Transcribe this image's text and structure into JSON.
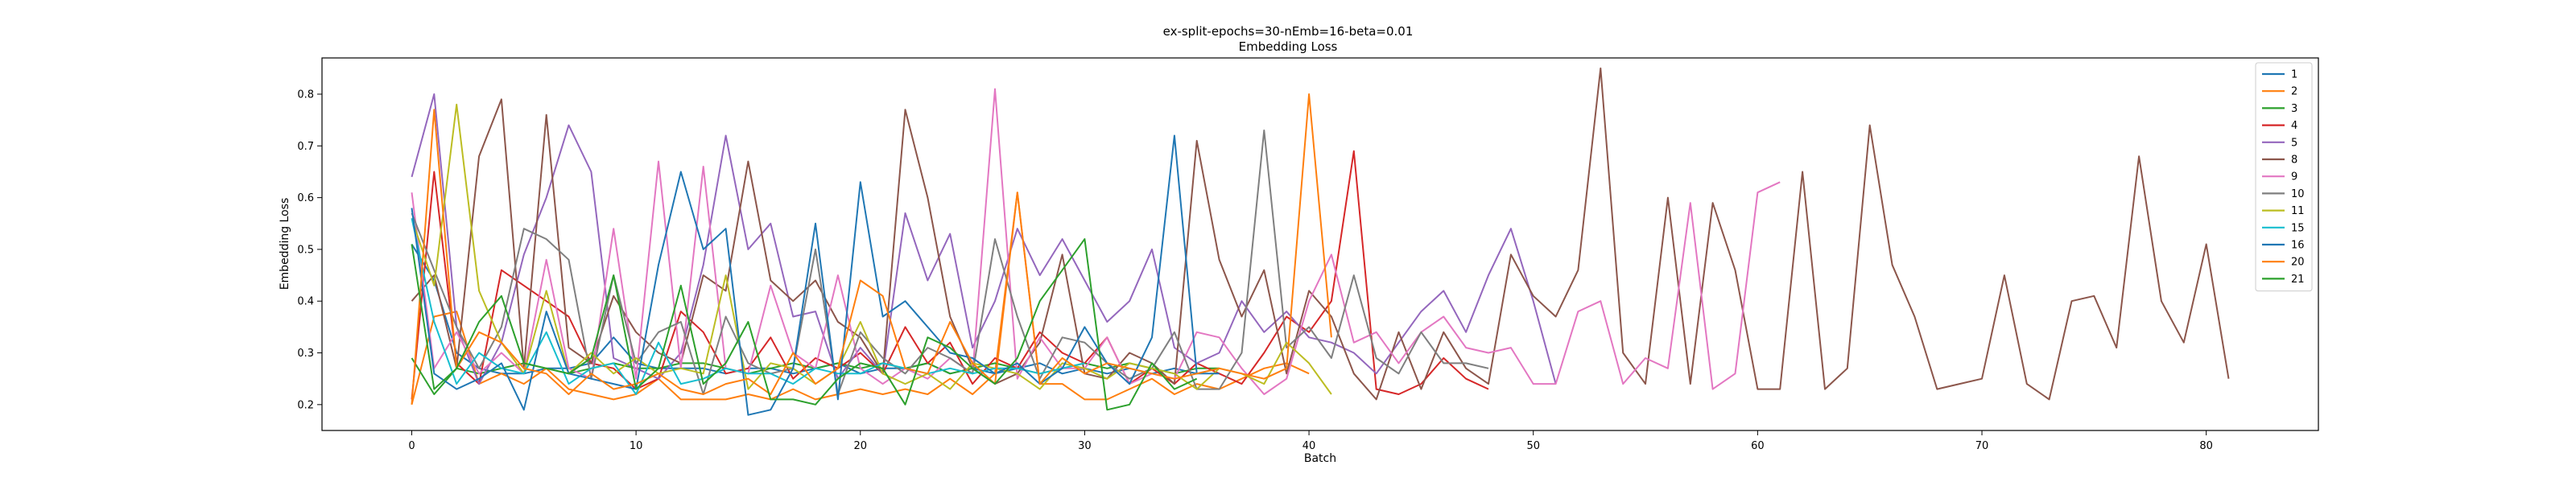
{
  "chart_data": {
    "type": "line",
    "title": "ex-split-epochs=30-nEmb=16-beta=0.01",
    "subtitle": "Embedding Loss",
    "xlabel": "Batch",
    "ylabel": "Embedding Loss",
    "xlim": [
      -4,
      85
    ],
    "ylim": [
      0.15,
      0.87
    ],
    "xticks": [
      0,
      10,
      20,
      30,
      40,
      50,
      60,
      70,
      80
    ],
    "yticks": [
      0.2,
      0.3,
      0.4,
      0.5,
      0.6,
      0.7,
      0.8
    ],
    "grid": false,
    "legend_position": "top-right",
    "series": [
      {
        "name": "1",
        "color": "#1f77b4",
        "values": [
          0.51,
          0.44,
          0.3,
          0.27,
          0.26,
          0.26,
          0.27,
          0.27,
          0.28,
          0.33,
          0.28,
          0.27,
          0.27,
          0.27,
          0.26,
          0.27,
          0.27,
          0.26,
          0.27,
          0.28,
          0.26,
          0.27,
          0.27,
          0.28,
          0.26,
          0.27,
          0.26,
          0.27,
          0.28,
          0.26,
          0.27,
          0.26,
          0.27,
          0.26,
          0.27,
          0.26,
          0.27
        ]
      },
      {
        "name": "2",
        "color": "#ff7f0e",
        "values": [
          0.2,
          0.37,
          0.38,
          0.24,
          0.26,
          0.24,
          0.27,
          0.23,
          0.22,
          0.21,
          0.22,
          0.25,
          0.21,
          0.21,
          0.21,
          0.22,
          0.21,
          0.23,
          0.21,
          0.22,
          0.23,
          0.22,
          0.23,
          0.22,
          0.25,
          0.22,
          0.26,
          0.61,
          0.24,
          0.24,
          0.21,
          0.21,
          0.23,
          0.25,
          0.22,
          0.24,
          0.23,
          0.25,
          0.27,
          0.28,
          0.26
        ]
      },
      {
        "name": "3",
        "color": "#2ca02c",
        "values": [
          0.29,
          0.22,
          0.27,
          0.26,
          0.27,
          0.28,
          0.27,
          0.26,
          0.27,
          0.28,
          0.27,
          0.27,
          0.28,
          0.28,
          0.27,
          0.26,
          0.27,
          0.28,
          0.27,
          0.28,
          0.27,
          0.28,
          0.27,
          0.28,
          0.26,
          0.27,
          0.28,
          0.27,
          0.26,
          0.27,
          0.28,
          0.27,
          0.28,
          0.27,
          0.26,
          0.27,
          0.27
        ]
      },
      {
        "name": "4",
        "color": "#d62728",
        "values": [
          0.21,
          0.65,
          0.28,
          0.24,
          0.46,
          0.43,
          0.4,
          0.37,
          0.28,
          0.27,
          0.23,
          0.25,
          0.38,
          0.34,
          0.26,
          0.27,
          0.33,
          0.25,
          0.29,
          0.27,
          0.3,
          0.26,
          0.35,
          0.28,
          0.32,
          0.24,
          0.29,
          0.27,
          0.34,
          0.3,
          0.28,
          0.33,
          0.24,
          0.27,
          0.24,
          0.28,
          0.26,
          0.24,
          0.3,
          0.37,
          0.34,
          0.4,
          0.69,
          0.23,
          0.22,
          0.24,
          0.29,
          0.25,
          0.23
        ]
      },
      {
        "name": "5",
        "color": "#9467bd",
        "values": [
          0.64,
          0.8,
          0.35,
          0.24,
          0.32,
          0.49,
          0.6,
          0.74,
          0.65,
          0.29,
          0.27,
          0.25,
          0.3,
          0.47,
          0.72,
          0.5,
          0.55,
          0.37,
          0.38,
          0.25,
          0.31,
          0.26,
          0.57,
          0.44,
          0.53,
          0.31,
          0.4,
          0.54,
          0.45,
          0.52,
          0.44,
          0.36,
          0.4,
          0.5,
          0.31,
          0.28,
          0.3,
          0.4,
          0.34,
          0.38,
          0.33,
          0.32,
          0.3,
          0.26,
          0.32,
          0.38,
          0.42,
          0.34,
          0.45,
          0.54,
          0.4,
          0.24
        ]
      },
      {
        "name": "8",
        "color": "#8c564b",
        "values": [
          0.4,
          0.45,
          0.27,
          0.68,
          0.79,
          0.27,
          0.76,
          0.31,
          0.28,
          0.41,
          0.34,
          0.3,
          0.28,
          0.45,
          0.42,
          0.67,
          0.44,
          0.4,
          0.44,
          0.36,
          0.33,
          0.26,
          0.77,
          0.6,
          0.37,
          0.27,
          0.24,
          0.26,
          0.32,
          0.49,
          0.26,
          0.25,
          0.3,
          0.28,
          0.24,
          0.71,
          0.48,
          0.37,
          0.46,
          0.26,
          0.42,
          0.37,
          0.26,
          0.21,
          0.34,
          0.23,
          0.34,
          0.27,
          0.24,
          0.49,
          0.41,
          0.37,
          0.46,
          0.85,
          0.3,
          0.24,
          0.6,
          0.24,
          0.59,
          0.46,
          0.23,
          0.23,
          0.65,
          0.23,
          0.27,
          0.74,
          0.47,
          0.37,
          0.23,
          0.24,
          0.25,
          0.45,
          0.24,
          0.21,
          0.4,
          0.41,
          0.31,
          0.68,
          0.4,
          0.32,
          0.51,
          0.25
        ]
      },
      {
        "name": "9",
        "color": "#e377c2",
        "values": [
          0.61,
          0.27,
          0.34,
          0.26,
          0.3,
          0.26,
          0.48,
          0.27,
          0.25,
          0.54,
          0.25,
          0.67,
          0.27,
          0.66,
          0.27,
          0.26,
          0.43,
          0.3,
          0.27,
          0.45,
          0.27,
          0.24,
          0.27,
          0.25,
          0.29,
          0.26,
          0.81,
          0.25,
          0.33,
          0.27,
          0.27,
          0.33,
          0.24,
          0.26,
          0.25,
          0.34,
          0.33,
          0.27,
          0.22,
          0.25,
          0.4,
          0.49,
          0.32,
          0.34,
          0.28,
          0.34,
          0.37,
          0.31,
          0.3,
          0.31,
          0.24,
          0.24,
          0.38,
          0.4,
          0.24,
          0.29,
          0.27,
          0.59,
          0.23,
          0.26,
          0.61,
          0.63
        ]
      },
      {
        "name": "10",
        "color": "#7f7f7f",
        "values": [
          0.57,
          0.46,
          0.35,
          0.27,
          0.35,
          0.54,
          0.52,
          0.48,
          0.25,
          0.45,
          0.28,
          0.34,
          0.36,
          0.22,
          0.37,
          0.28,
          0.26,
          0.27,
          0.5,
          0.22,
          0.34,
          0.29,
          0.26,
          0.31,
          0.29,
          0.26,
          0.52,
          0.37,
          0.25,
          0.33,
          0.32,
          0.28,
          0.25,
          0.27,
          0.34,
          0.23,
          0.23,
          0.3,
          0.73,
          0.31,
          0.35,
          0.29,
          0.45,
          0.29,
          0.26,
          0.34,
          0.28,
          0.28,
          0.27
        ]
      },
      {
        "name": "11",
        "color": "#bcbd22",
        "values": [
          0.56,
          0.43,
          0.78,
          0.42,
          0.32,
          0.26,
          0.42,
          0.26,
          0.3,
          0.26,
          0.29,
          0.26,
          0.27,
          0.26,
          0.45,
          0.23,
          0.28,
          0.27,
          0.24,
          0.27,
          0.36,
          0.26,
          0.24,
          0.26,
          0.23,
          0.28,
          0.27,
          0.26,
          0.23,
          0.28,
          0.27,
          0.25,
          0.28,
          0.27,
          0.26,
          0.23,
          0.27,
          0.26,
          0.24,
          0.32,
          0.28,
          0.22
        ]
      },
      {
        "name": "15",
        "color": "#17becf",
        "values": [
          0.56,
          0.36,
          0.24,
          0.3,
          0.27,
          0.26,
          0.34,
          0.24,
          0.27,
          0.28,
          0.22,
          0.32,
          0.24,
          0.25,
          0.27,
          0.26,
          0.26,
          0.24,
          0.27,
          0.26,
          0.26,
          0.28,
          0.27,
          0.26,
          0.27,
          0.26,
          0.27,
          0.27,
          0.26,
          0.27,
          0.28
        ]
      },
      {
        "name": "16",
        "color": "#1f77b4",
        "values": [
          0.58,
          0.26,
          0.23,
          0.25,
          0.28,
          0.19,
          0.38,
          0.26,
          0.25,
          0.24,
          0.23,
          0.47,
          0.65,
          0.5,
          0.54,
          0.18,
          0.19,
          0.27,
          0.55,
          0.21,
          0.63,
          0.37,
          0.4,
          0.35,
          0.3,
          0.29,
          0.26,
          0.28,
          0.24,
          0.27,
          0.35,
          0.28,
          0.24,
          0.33,
          0.72,
          0.26,
          0.26
        ]
      },
      {
        "name": "20",
        "color": "#ff7f0e",
        "values": [
          0.2,
          0.77,
          0.27,
          0.34,
          0.32,
          0.27,
          0.26,
          0.22,
          0.26,
          0.23,
          0.24,
          0.26,
          0.23,
          0.22,
          0.24,
          0.25,
          0.22,
          0.3,
          0.24,
          0.27,
          0.44,
          0.41,
          0.27,
          0.26,
          0.36,
          0.28,
          0.24,
          0.61,
          0.24,
          0.29,
          0.26,
          0.28,
          0.27,
          0.26,
          0.25,
          0.26,
          0.27,
          0.26,
          0.25,
          0.27,
          0.8,
          0.33
        ]
      },
      {
        "name": "21",
        "color": "#2ca02c",
        "values": [
          0.51,
          0.23,
          0.27,
          0.36,
          0.41,
          0.28,
          0.27,
          0.26,
          0.29,
          0.45,
          0.23,
          0.27,
          0.43,
          0.24,
          0.28,
          0.36,
          0.21,
          0.21,
          0.2,
          0.25,
          0.28,
          0.27,
          0.2,
          0.33,
          0.31,
          0.27,
          0.24,
          0.29,
          0.4,
          0.46,
          0.52,
          0.19,
          0.2,
          0.28,
          0.23,
          0.25
        ]
      }
    ]
  }
}
